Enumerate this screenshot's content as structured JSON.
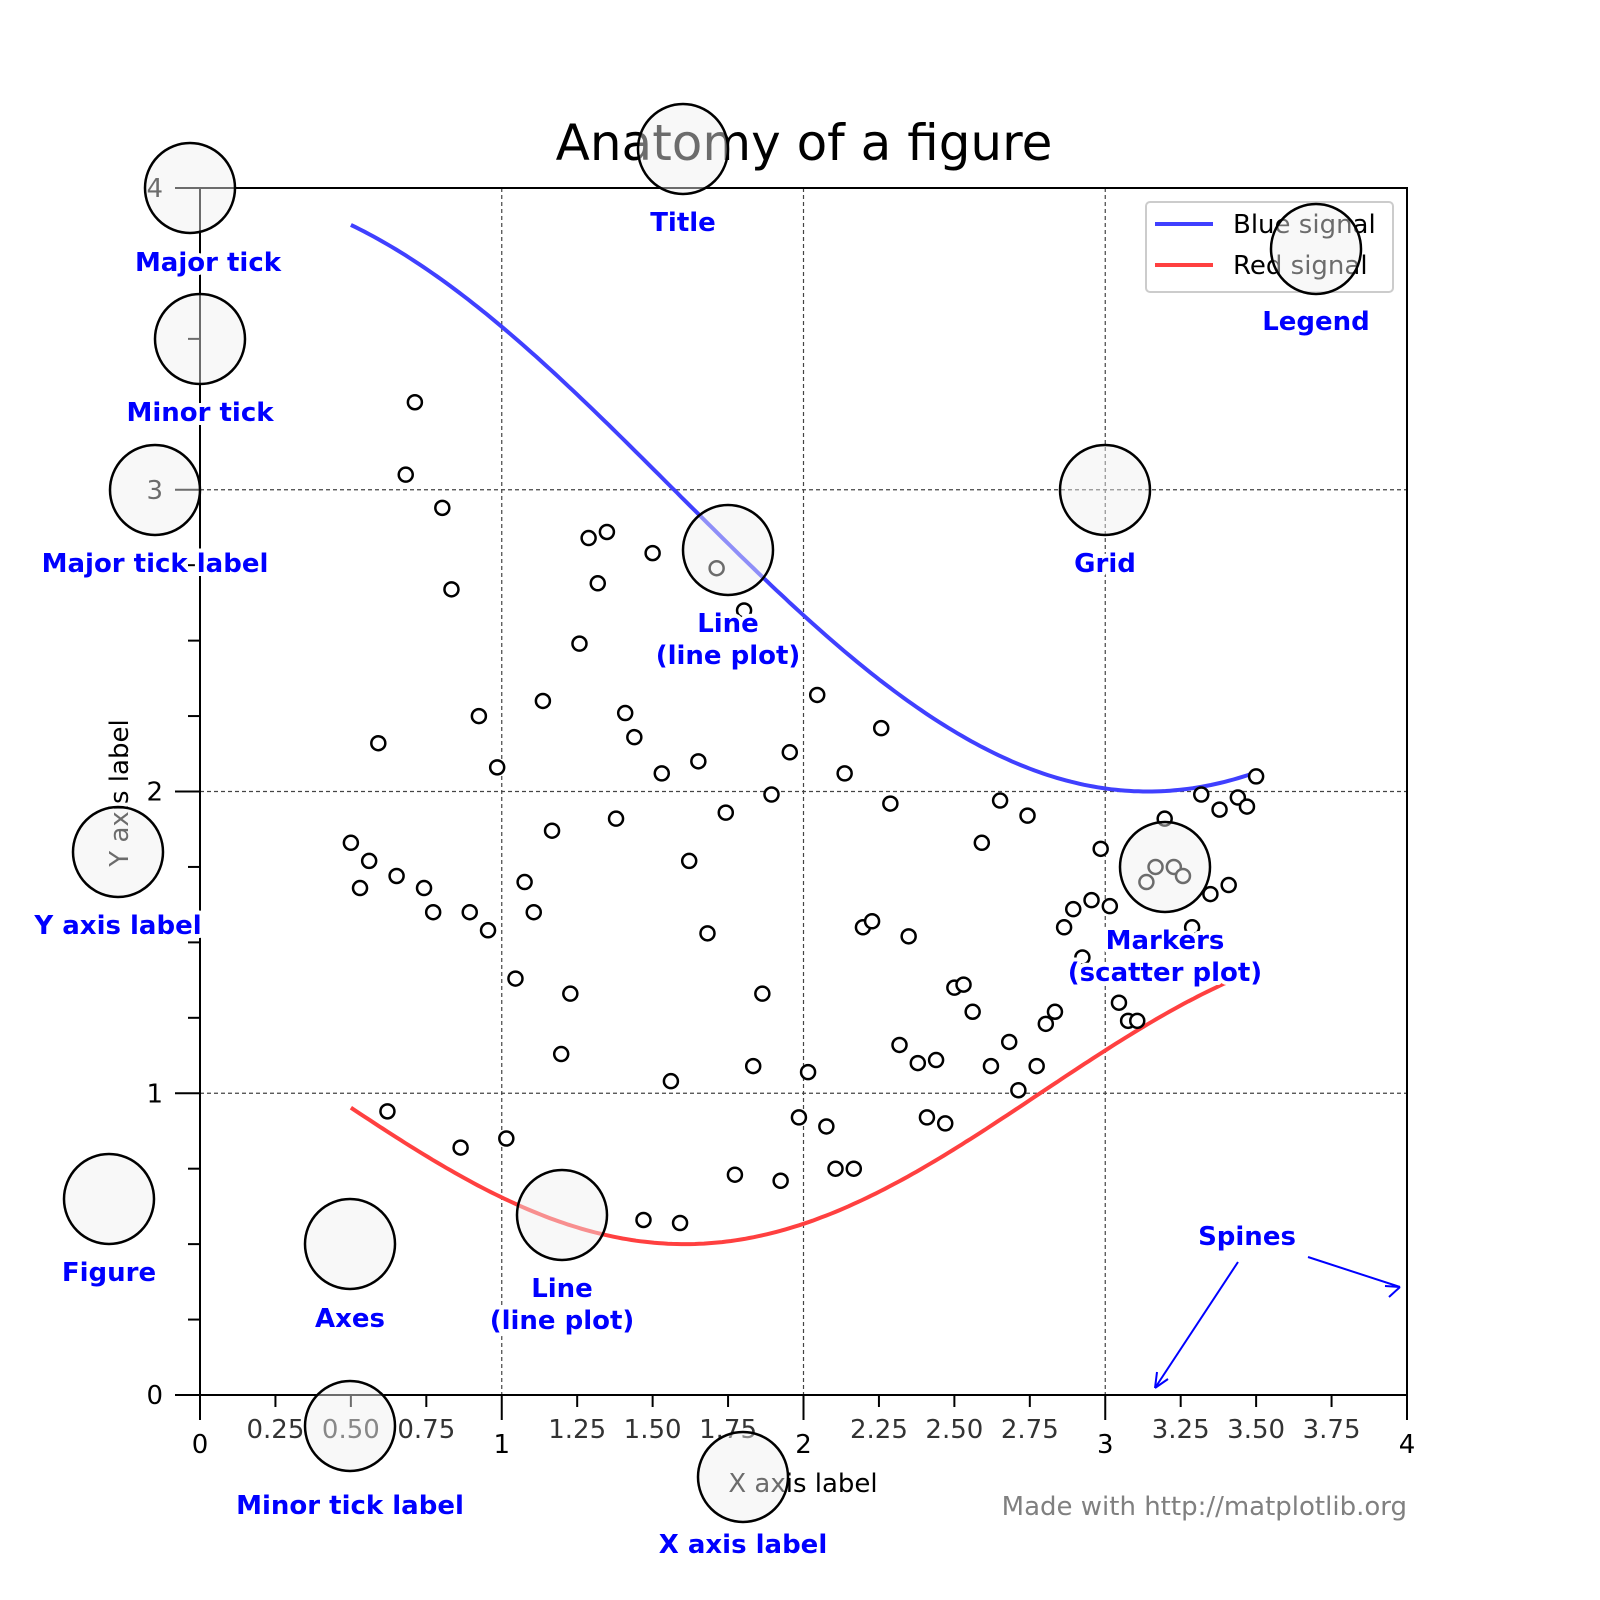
{
  "chart_data": {
    "type": "line",
    "title": "Anatomy of a figure",
    "xlabel": "X axis label",
    "ylabel": "Y axis label",
    "xlim": [
      0,
      4
    ],
    "ylim": [
      0,
      4
    ],
    "grid": true,
    "legend_placement": "upper right",
    "x_major_ticks": [
      "0",
      "1",
      "2",
      "3",
      "4"
    ],
    "x_minor_tick_labels": [
      "0.25",
      "0.50",
      "0.75",
      "1.25",
      "1.50",
      "1.75",
      "2.25",
      "2.50",
      "2.75",
      "3.25",
      "3.50",
      "3.75"
    ],
    "y_major_ticks": [
      "0",
      "1",
      "2",
      "3",
      "4"
    ],
    "x_range": [
      0.5,
      3.5
    ],
    "series": [
      {
        "name": "Blue signal",
        "kind": "line",
        "formula": "3 + cos(x)",
        "color": "#4040ff"
      },
      {
        "name": "Red signal",
        "kind": "line",
        "formula": "1 + cos(1 + x/0.75)/2",
        "color": "#ff4040"
      },
      {
        "kind": "scatter",
        "marker": "open circle",
        "color": "#000000",
        "y": [
          1.83,
          1.68,
          1.77,
          2.16,
          0.94,
          1.72,
          3.05,
          3.29,
          1.68,
          1.6,
          2.94,
          2.67,
          0.82,
          1.6,
          2.25,
          1.54,
          2.08,
          0.85,
          1.38,
          1.7,
          1.6,
          2.3,
          1.87,
          1.13,
          1.33,
          2.49,
          2.84,
          2.69,
          2.86,
          1.91,
          2.26,
          2.18,
          0.58,
          2.79,
          2.06,
          1.04,
          0.57,
          1.77,
          2.1,
          1.53,
          2.74,
          1.93,
          0.73,
          2.6,
          1.09,
          1.33,
          1.99,
          0.71,
          2.13,
          0.92,
          1.07,
          2.32,
          0.89,
          0.75,
          2.06,
          0.75,
          1.55,
          1.57,
          2.21,
          1.96,
          1.16,
          1.52,
          1.1,
          0.92,
          1.11,
          0.9,
          1.35,
          1.36,
          1.27,
          1.83,
          1.09,
          1.97,
          1.17,
          1.01,
          1.92,
          1.09,
          1.23,
          1.27,
          1.55,
          1.61,
          1.45,
          1.64,
          1.81,
          1.62,
          1.3,
          1.24,
          1.24,
          1.7,
          1.75,
          1.91,
          1.75,
          1.72,
          1.55,
          1.99,
          1.66,
          1.94,
          1.69,
          1.98,
          1.95,
          2.05
        ]
      }
    ],
    "annotations": [
      "Major tick",
      "Minor tick",
      "Major tick label",
      "Y axis label",
      "Figure",
      "Axes",
      "Minor tick label",
      "X axis label",
      "Line\n(line plot)",
      "Line\n(line plot)",
      "Title",
      "Legend",
      "Grid",
      "Markers\n(scatter plot)",
      "Spines"
    ],
    "annotation_color": "#0000ff",
    "footer": "Made with http://matplotlib.org"
  }
}
